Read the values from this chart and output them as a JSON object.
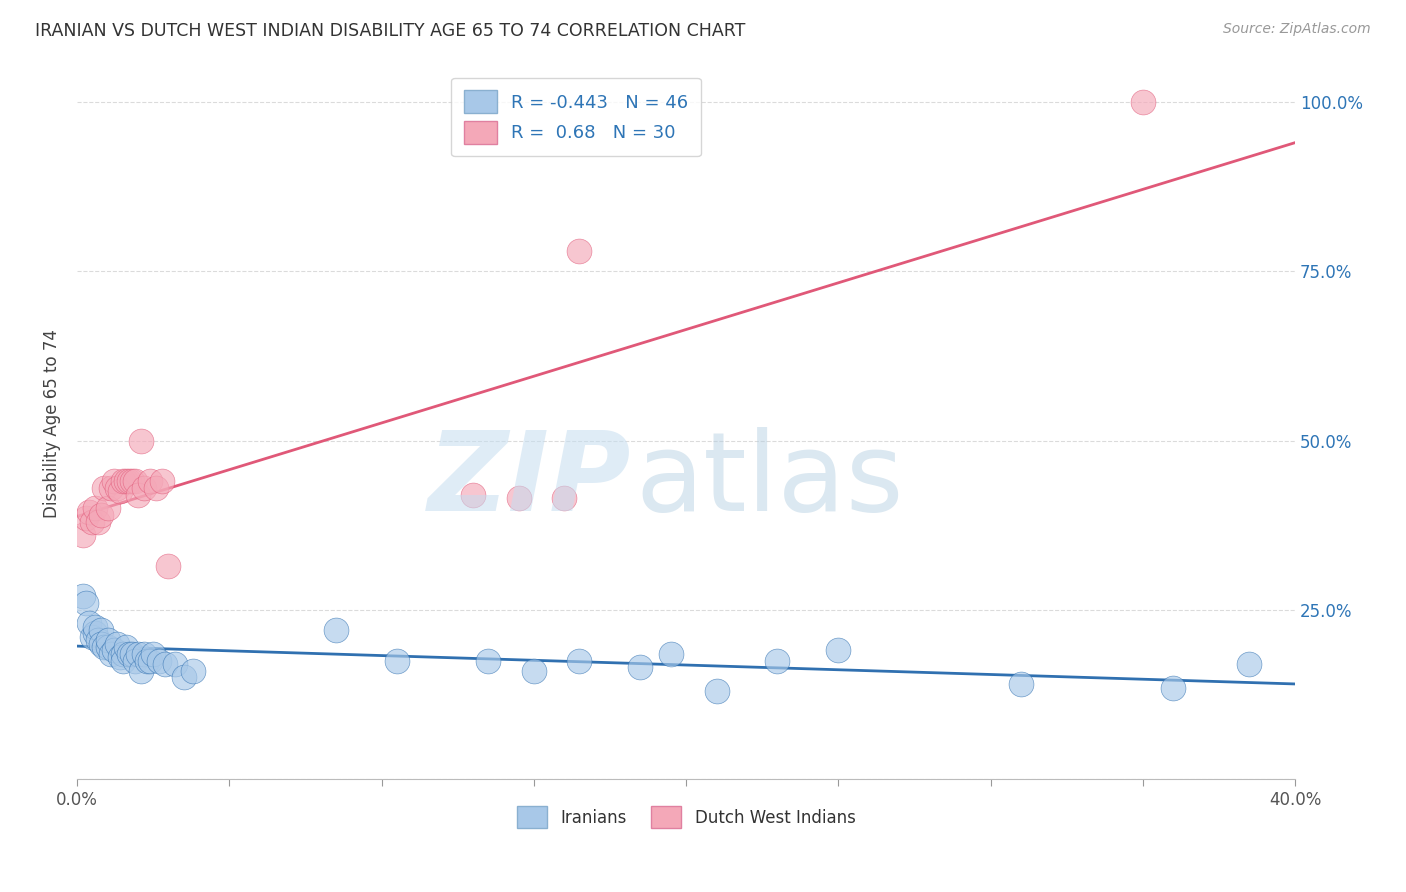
{
  "title": "IRANIAN VS DUTCH WEST INDIAN DISABILITY AGE 65 TO 74 CORRELATION CHART",
  "source": "Source: ZipAtlas.com",
  "ylabel": "Disability Age 65 to 74",
  "yticks": [
    0.0,
    0.25,
    0.5,
    0.75,
    1.0
  ],
  "ytick_labels": [
    "",
    "25.0%",
    "50.0%",
    "75.0%",
    "100.0%"
  ],
  "xmin": 0.0,
  "xmax": 0.4,
  "ymin": 0.0,
  "ymax": 1.05,
  "iranian_R": -0.443,
  "iranian_N": 46,
  "dutch_R": 0.68,
  "dutch_N": 30,
  "iranian_color": "#A8C8E8",
  "dutch_color": "#F4A8B8",
  "iranian_line_color": "#3070B0",
  "dutch_line_color": "#E05878",
  "iranians_x": [
    0.002,
    0.003,
    0.004,
    0.005,
    0.006,
    0.006,
    0.007,
    0.008,
    0.008,
    0.009,
    0.01,
    0.01,
    0.011,
    0.012,
    0.013,
    0.014,
    0.015,
    0.015,
    0.016,
    0.017,
    0.018,
    0.019,
    0.02,
    0.021,
    0.022,
    0.023,
    0.024,
    0.025,
    0.027,
    0.029,
    0.032,
    0.035,
    0.038,
    0.085,
    0.105,
    0.135,
    0.15,
    0.165,
    0.185,
    0.195,
    0.21,
    0.23,
    0.25,
    0.31,
    0.36,
    0.385
  ],
  "iranians_y": [
    0.27,
    0.26,
    0.23,
    0.21,
    0.215,
    0.225,
    0.205,
    0.22,
    0.2,
    0.195,
    0.195,
    0.205,
    0.185,
    0.19,
    0.2,
    0.18,
    0.185,
    0.175,
    0.195,
    0.185,
    0.185,
    0.175,
    0.185,
    0.16,
    0.185,
    0.175,
    0.175,
    0.185,
    0.175,
    0.17,
    0.17,
    0.15,
    0.16,
    0.22,
    0.175,
    0.175,
    0.16,
    0.175,
    0.165,
    0.185,
    0.13,
    0.175,
    0.19,
    0.14,
    0.135,
    0.17
  ],
  "dutch_x": [
    0.002,
    0.003,
    0.004,
    0.005,
    0.006,
    0.007,
    0.008,
    0.009,
    0.01,
    0.011,
    0.012,
    0.013,
    0.014,
    0.015,
    0.016,
    0.017,
    0.018,
    0.019,
    0.02,
    0.021,
    0.022,
    0.024,
    0.026,
    0.028,
    0.03,
    0.13,
    0.145,
    0.16,
    0.165,
    0.35
  ],
  "dutch_y": [
    0.36,
    0.385,
    0.395,
    0.38,
    0.4,
    0.38,
    0.39,
    0.43,
    0.4,
    0.43,
    0.44,
    0.43,
    0.425,
    0.44,
    0.44,
    0.44,
    0.44,
    0.44,
    0.42,
    0.5,
    0.43,
    0.44,
    0.43,
    0.44,
    0.315,
    0.42,
    0.415,
    0.415,
    0.78,
    1.0
  ],
  "legend_text_color": "#2E75B6",
  "watermark_zip_color": "#C5DDF0",
  "watermark_atlas_color": "#B0CCE0"
}
